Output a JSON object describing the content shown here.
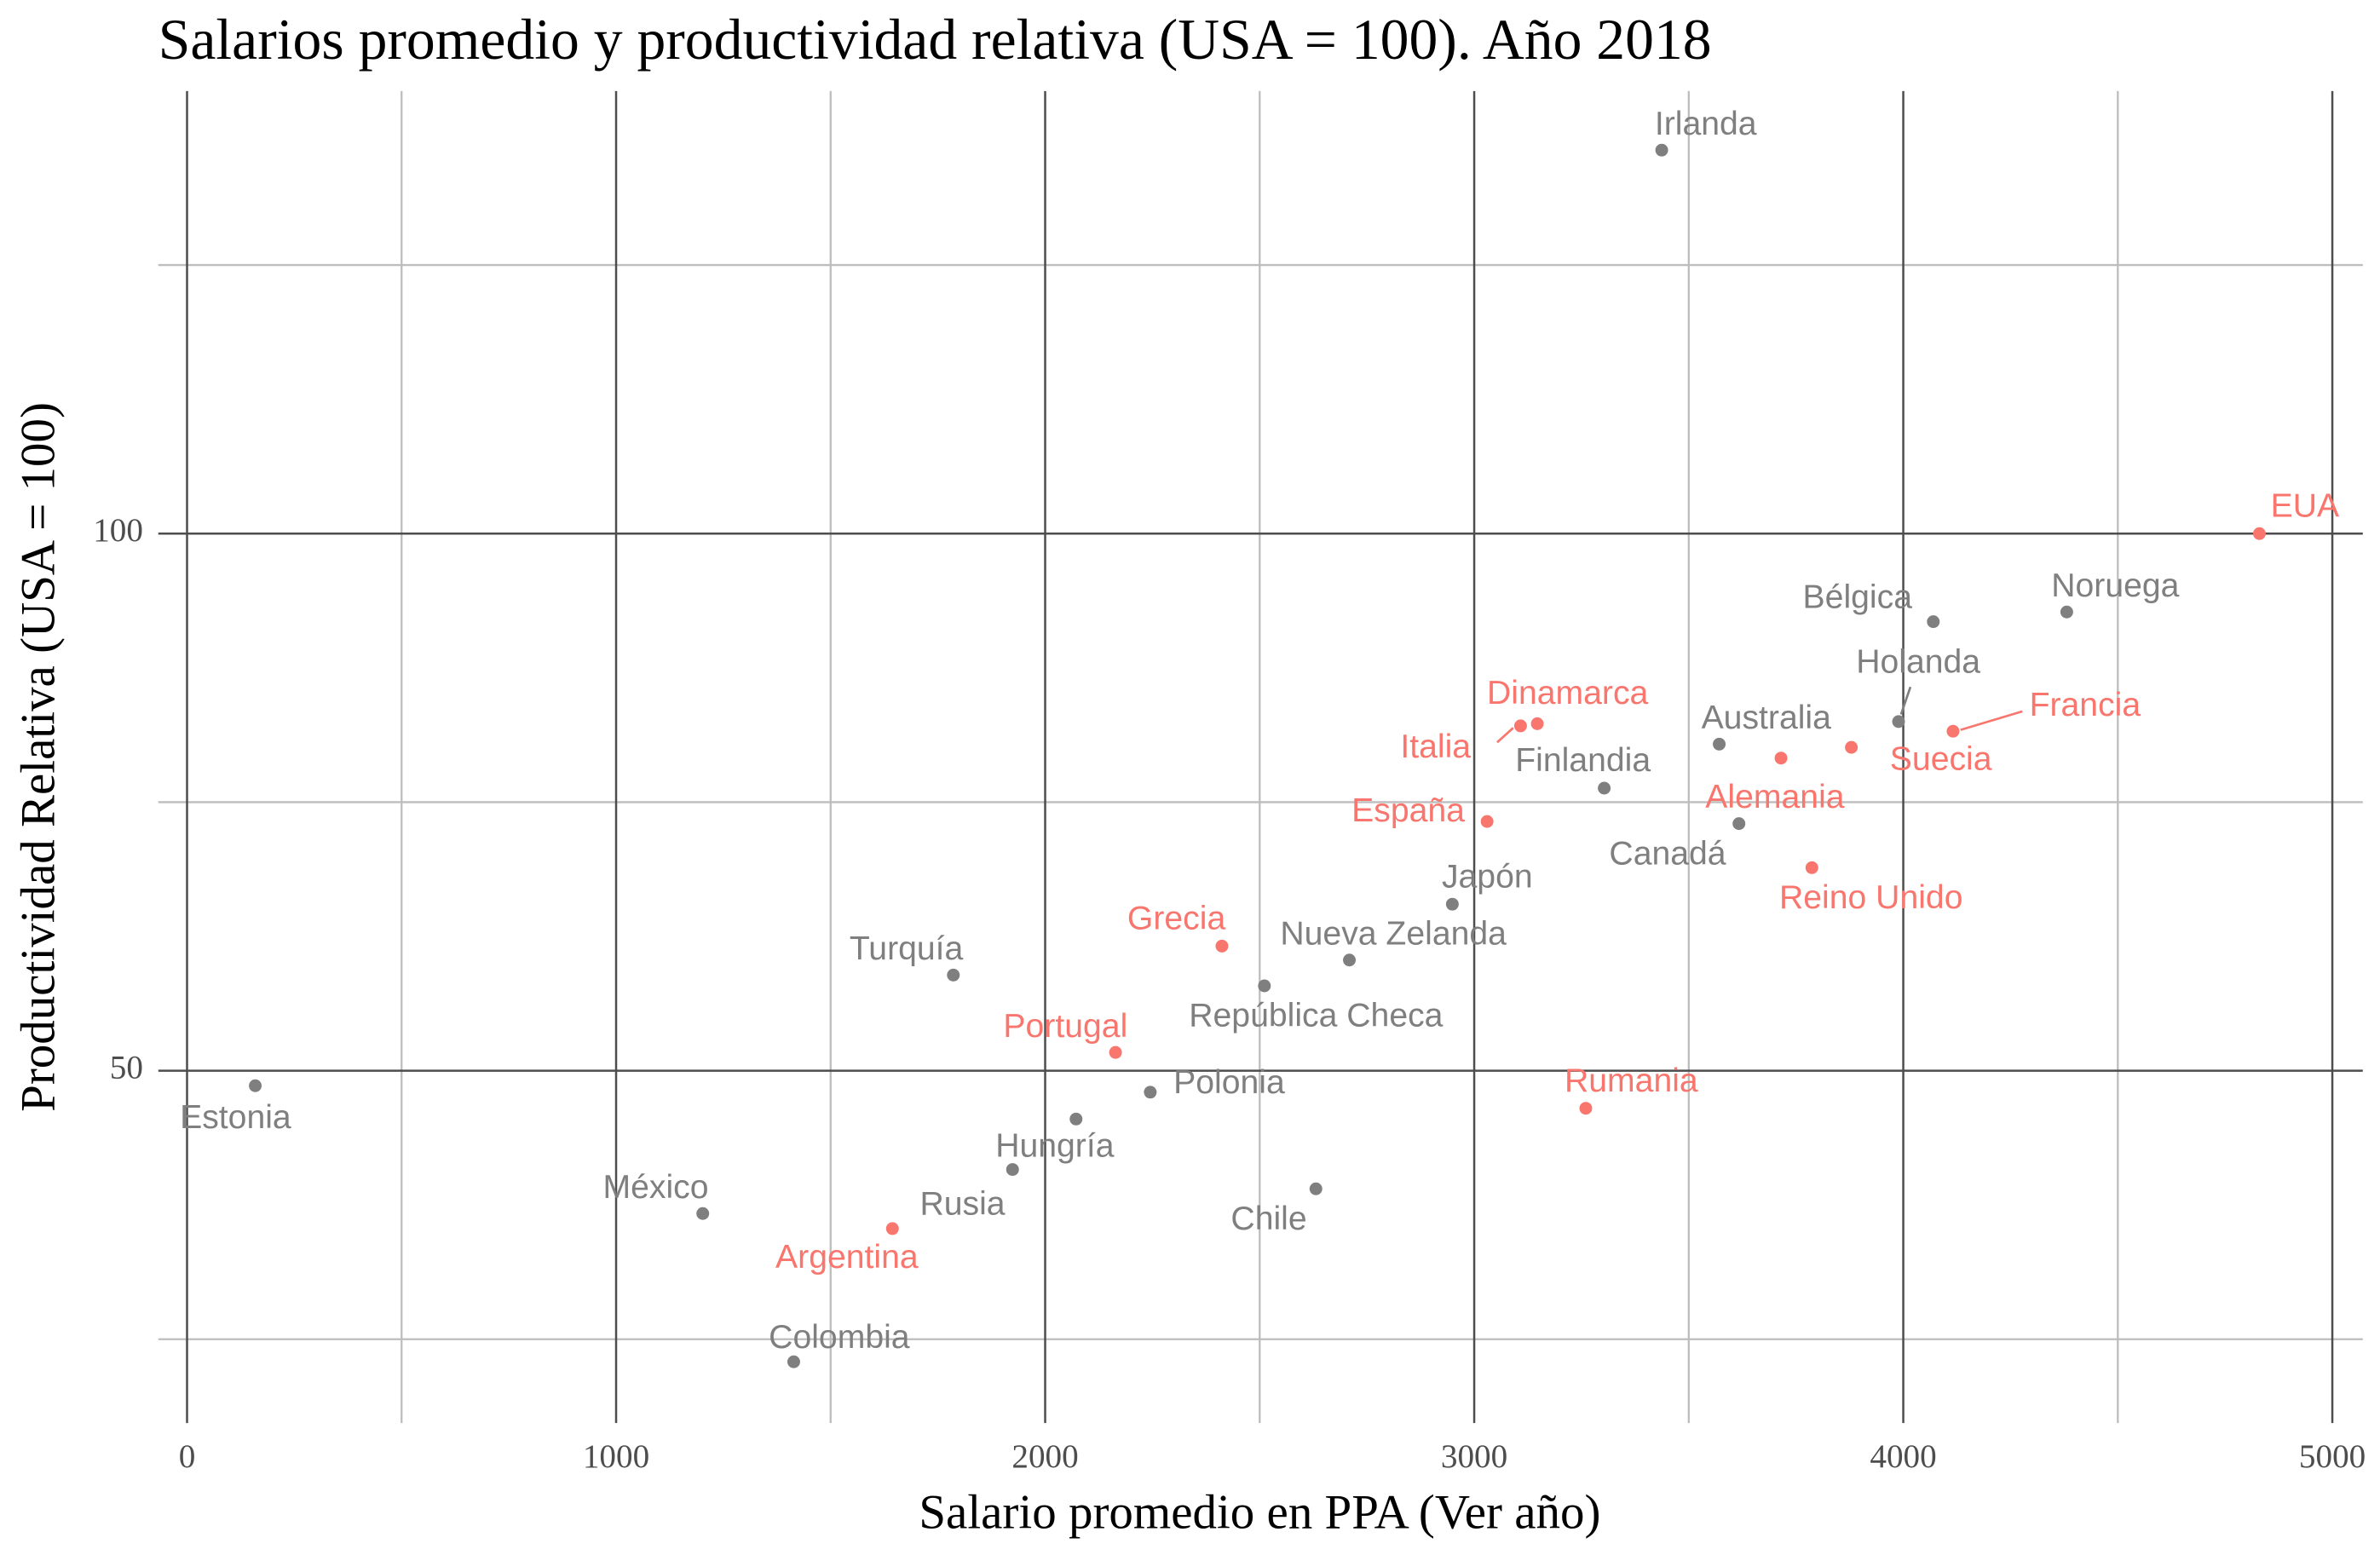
{
  "chart_data": {
    "type": "scatter",
    "title": "Salarios promedio y productividad relativa (USA = 100). Año 2018",
    "x_label": "Salario promedio en PPA (Ver año)",
    "y_label": "Productividad Relativa (USA = 100)",
    "xlim": [
      -67,
      5071
    ],
    "ylim": [
      17.2,
      141.2
    ],
    "xticks": [
      0,
      1000,
      2000,
      3000,
      4000,
      5000
    ],
    "yticks": [
      50,
      100
    ],
    "minor_xticks": [
      500,
      1500,
      2500,
      3500,
      4500
    ],
    "minor_yticks": [
      25,
      75,
      125
    ],
    "grid": true,
    "series": [
      {
        "color": "#7f7f7f",
        "labels": [
          "Irlanda",
          "Noruega",
          "Bélgica",
          "Holanda",
          "Australia",
          "Finlandia",
          "Canadá",
          "Japón",
          "Nueva Zelanda",
          "República Checa",
          "Turquía",
          "Estonia",
          "Polonia",
          "Hungría",
          "Chile",
          "México",
          "Colombia",
          "Rusia"
        ],
        "x": [
          3437,
          4381,
          4070,
          3989,
          3571,
          3303,
          3617,
          2949,
          2709,
          2511,
          1786,
          159,
          2245,
          2072,
          2631,
          1202,
          1414,
          1924
        ],
        "y": [
          135.7,
          92.7,
          91.8,
          82.5,
          80.4,
          76.3,
          73.0,
          65.5,
          60.3,
          57.9,
          58.9,
          48.6,
          48.0,
          45.5,
          39.0,
          36.7,
          22.9,
          40.8
        ]
      },
      {
        "color": "#f8766d",
        "labels": [
          "EUA",
          "Francia",
          "Suecia",
          "Alemania",
          "Dinamarca",
          "Italia",
          "España",
          "Reino Unido",
          "Grecia",
          "Portugal",
          "Rumania",
          "Argentina"
        ],
        "x": [
          4830,
          4116,
          3879,
          3715,
          3147,
          3108,
          3030,
          3787,
          2412,
          2164,
          3260,
          1644
        ],
        "y": [
          100,
          81.6,
          80.1,
          79.1,
          82.3,
          82.1,
          73.2,
          68.9,
          61.6,
          51.7,
          46.5,
          35.3
        ]
      }
    ]
  }
}
